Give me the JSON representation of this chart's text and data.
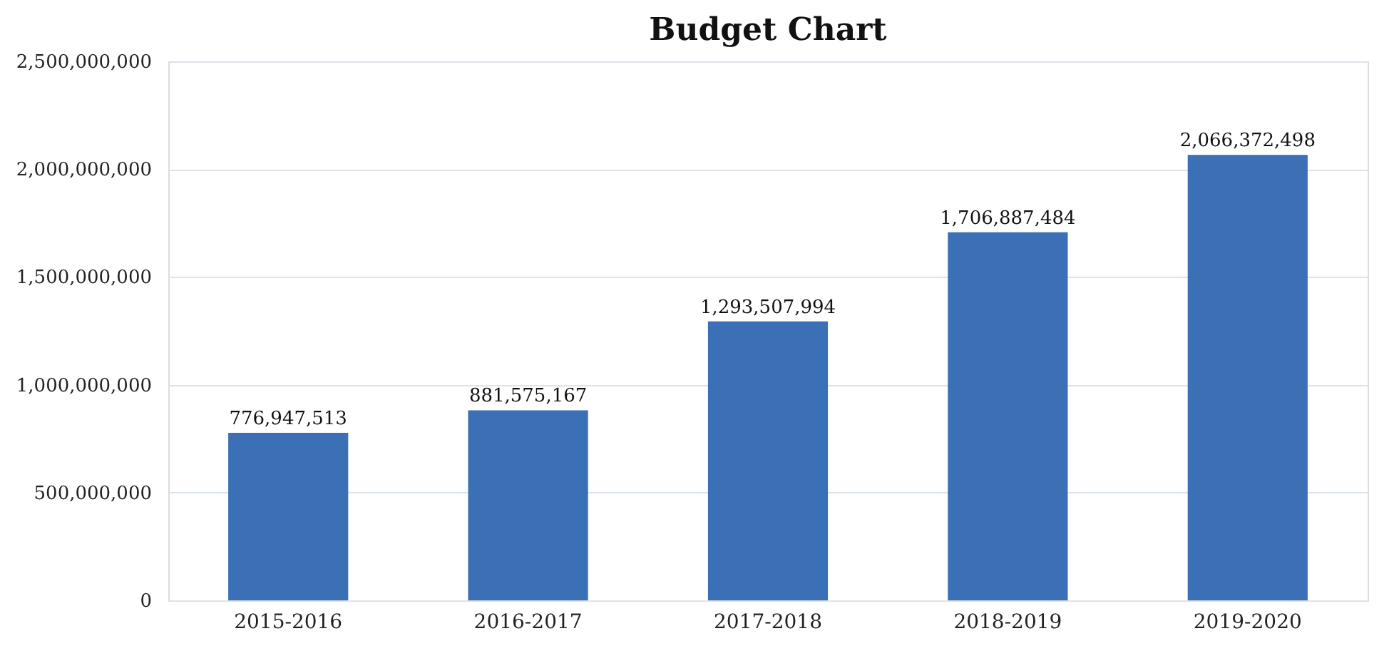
{
  "chart_data": {
    "type": "bar",
    "title": "Budget Chart",
    "categories": [
      "2015-2016",
      "2016-2017",
      "2017-2018",
      "2018-2019",
      "2019-2020"
    ],
    "values": [
      776947513,
      881575167,
      1293507994,
      1706887484,
      2066372498
    ],
    "value_labels": [
      "776,947,513",
      "881,575,167",
      "1,293,507,994",
      "1,706,887,484",
      "2,066,372,498"
    ],
    "color": "#3b6fb6",
    "ylim": [
      0,
      2500000000
    ],
    "yticks": [
      0,
      {
        "value": 500000000,
        "label": "500,000,000"
      },
      {
        "value": 1000000000,
        "label": "1,000,000,000"
      },
      {
        "value": 1500000000,
        "label": "1,500,000,000"
      },
      {
        "value": 2000000000,
        "label": "2,000,000,000"
      },
      {
        "value": 2500000000,
        "label": "2,500,000,000"
      }
    ],
    "grid": "y"
  }
}
